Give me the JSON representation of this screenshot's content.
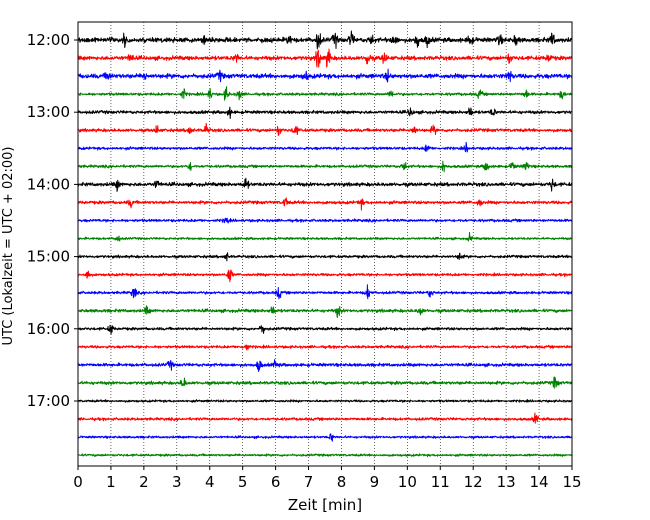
{
  "chart_data": {
    "type": "line",
    "subtype": "helicorder",
    "xlabel": "Zeit  [min]",
    "ylabel": "UTC (Lokalzeit = UTC + 02:00)",
    "xlim": [
      0,
      15
    ],
    "x_ticks": [
      0,
      1,
      2,
      3,
      4,
      5,
      6,
      7,
      8,
      9,
      10,
      11,
      12,
      13,
      14,
      15
    ],
    "x_tick_labels": [
      "0",
      "1",
      "2",
      "3",
      "4",
      "5",
      "6",
      "7",
      "8",
      "9",
      "10",
      "11",
      "12",
      "13",
      "14",
      "15"
    ],
    "x_grid": true,
    "y_ticks": [
      "12:00",
      "13:00",
      "14:00",
      "15:00",
      "16:00",
      "17:00"
    ],
    "trace_interval_min": 15,
    "color_cycle": [
      "#000000",
      "#ff0000",
      "#0000ff",
      "#008000"
    ],
    "traces": [
      {
        "start": "12:00",
        "color": "#000000",
        "noise": 1.0,
        "events": [
          [
            1.4,
            1.6
          ],
          [
            3.8,
            1.4
          ],
          [
            6.4,
            1.6
          ],
          [
            7.3,
            3.2
          ],
          [
            7.8,
            2.0
          ],
          [
            8.3,
            2.4
          ],
          [
            8.9,
            1.6
          ],
          [
            9.6,
            1.8
          ],
          [
            10.3,
            2.0
          ],
          [
            10.6,
            1.6
          ],
          [
            11.9,
            1.8
          ],
          [
            12.8,
            1.4
          ],
          [
            13.3,
            1.5
          ],
          [
            14.4,
            1.9
          ]
        ]
      },
      {
        "start": "12:15",
        "color": "#ff0000",
        "noise": 0.9,
        "events": [
          [
            1.6,
            1.4
          ],
          [
            4.8,
            1.3
          ],
          [
            7.3,
            3.6
          ],
          [
            7.6,
            3.2
          ],
          [
            8.8,
            2.4
          ],
          [
            9.3,
            1.6
          ],
          [
            13.1,
            1.4
          ],
          [
            14.3,
            1.4
          ]
        ]
      },
      {
        "start": "12:30",
        "color": "#0000ff",
        "noise": 1.0,
        "events": [
          [
            0.9,
            1.4
          ],
          [
            2.0,
            1.4
          ],
          [
            4.3,
            1.3
          ],
          [
            6.9,
            1.3
          ],
          [
            9.4,
            1.4
          ],
          [
            13.1,
            1.8
          ]
        ]
      },
      {
        "start": "12:45",
        "color": "#008000",
        "noise": 0.6,
        "events": [
          [
            3.2,
            1.5
          ],
          [
            4.0,
            1.4
          ],
          [
            4.5,
            2.0
          ],
          [
            4.9,
            1.5
          ],
          [
            9.5,
            1.2
          ],
          [
            12.2,
            1.3
          ],
          [
            13.6,
            1.3
          ],
          [
            14.7,
            1.4
          ]
        ]
      },
      {
        "start": "13:00",
        "color": "#000000",
        "noise": 0.7,
        "events": [
          [
            4.6,
            1.3
          ],
          [
            10.1,
            1.3
          ],
          [
            11.9,
            1.6
          ],
          [
            12.6,
            1.2
          ]
        ]
      },
      {
        "start": "13:15",
        "color": "#ff0000",
        "noise": 0.7,
        "events": [
          [
            2.4,
            1.2
          ],
          [
            3.4,
            1.4
          ],
          [
            3.9,
            1.6
          ],
          [
            6.1,
            1.5
          ],
          [
            6.6,
            1.7
          ],
          [
            10.2,
            1.4
          ],
          [
            10.8,
            1.3
          ]
        ]
      },
      {
        "start": "13:30",
        "color": "#0000ff",
        "noise": 0.6,
        "events": [
          [
            10.6,
            1.3
          ],
          [
            11.8,
            1.2
          ]
        ]
      },
      {
        "start": "13:45",
        "color": "#008000",
        "noise": 0.6,
        "events": [
          [
            3.4,
            1.2
          ],
          [
            9.9,
            1.6
          ],
          [
            11.1,
            1.6
          ],
          [
            12.4,
            1.8
          ],
          [
            13.2,
            1.4
          ],
          [
            13.6,
            1.6
          ]
        ]
      },
      {
        "start": "14:00",
        "color": "#000000",
        "noise": 0.8,
        "events": [
          [
            1.2,
            1.4
          ],
          [
            2.4,
            1.3
          ],
          [
            5.1,
            2.0
          ],
          [
            14.4,
            1.8
          ]
        ]
      },
      {
        "start": "14:15",
        "color": "#ff0000",
        "noise": 0.7,
        "events": [
          [
            1.6,
            1.2
          ],
          [
            6.3,
            1.4
          ],
          [
            8.6,
            1.2
          ],
          [
            12.2,
            1.2
          ]
        ]
      },
      {
        "start": "14:30",
        "color": "#0000ff",
        "noise": 0.6,
        "events": [
          [
            4.5,
            1.1
          ]
        ]
      },
      {
        "start": "14:45",
        "color": "#008000",
        "noise": 0.5,
        "events": [
          [
            1.2,
            1.2
          ],
          [
            11.9,
            1.1
          ]
        ]
      },
      {
        "start": "15:00",
        "color": "#000000",
        "noise": 0.6,
        "events": [
          [
            4.5,
            1.2
          ],
          [
            11.6,
            1.2
          ]
        ]
      },
      {
        "start": "15:15",
        "color": "#ff0000",
        "noise": 0.6,
        "events": [
          [
            0.3,
            1.6
          ],
          [
            4.6,
            2.4
          ]
        ]
      },
      {
        "start": "15:30",
        "color": "#0000ff",
        "noise": 0.6,
        "events": [
          [
            1.7,
            1.8
          ],
          [
            6.1,
            1.7
          ],
          [
            8.8,
            2.2
          ],
          [
            10.7,
            1.3
          ]
        ]
      },
      {
        "start": "15:45",
        "color": "#008000",
        "noise": 0.7,
        "events": [
          [
            2.1,
            1.2
          ],
          [
            5.9,
            1.4
          ],
          [
            7.9,
            1.6
          ],
          [
            10.4,
            1.2
          ]
        ]
      },
      {
        "start": "16:00",
        "color": "#000000",
        "noise": 0.6,
        "events": [
          [
            1.0,
            1.6
          ],
          [
            5.6,
            1.6
          ]
        ]
      },
      {
        "start": "16:15",
        "color": "#ff0000",
        "noise": 0.6,
        "events": [
          [
            5.1,
            1.4
          ]
        ]
      },
      {
        "start": "16:30",
        "color": "#0000ff",
        "noise": 0.7,
        "events": [
          [
            2.8,
            1.3
          ],
          [
            5.5,
            1.9
          ],
          [
            6.0,
            1.3
          ]
        ]
      },
      {
        "start": "16:45",
        "color": "#008000",
        "noise": 0.7,
        "events": [
          [
            3.2,
            1.6
          ],
          [
            14.5,
            2.0
          ]
        ]
      },
      {
        "start": "17:00",
        "color": "#000000",
        "noise": 0.5,
        "events": []
      },
      {
        "start": "17:15",
        "color": "#ff0000",
        "noise": 0.6,
        "events": [
          [
            13.9,
            1.5
          ]
        ]
      },
      {
        "start": "17:30",
        "color": "#0000ff",
        "noise": 0.5,
        "events": [
          [
            7.7,
            1.2
          ]
        ]
      },
      {
        "start": "17:45",
        "color": "#008000",
        "noise": 0.5,
        "events": []
      }
    ]
  }
}
